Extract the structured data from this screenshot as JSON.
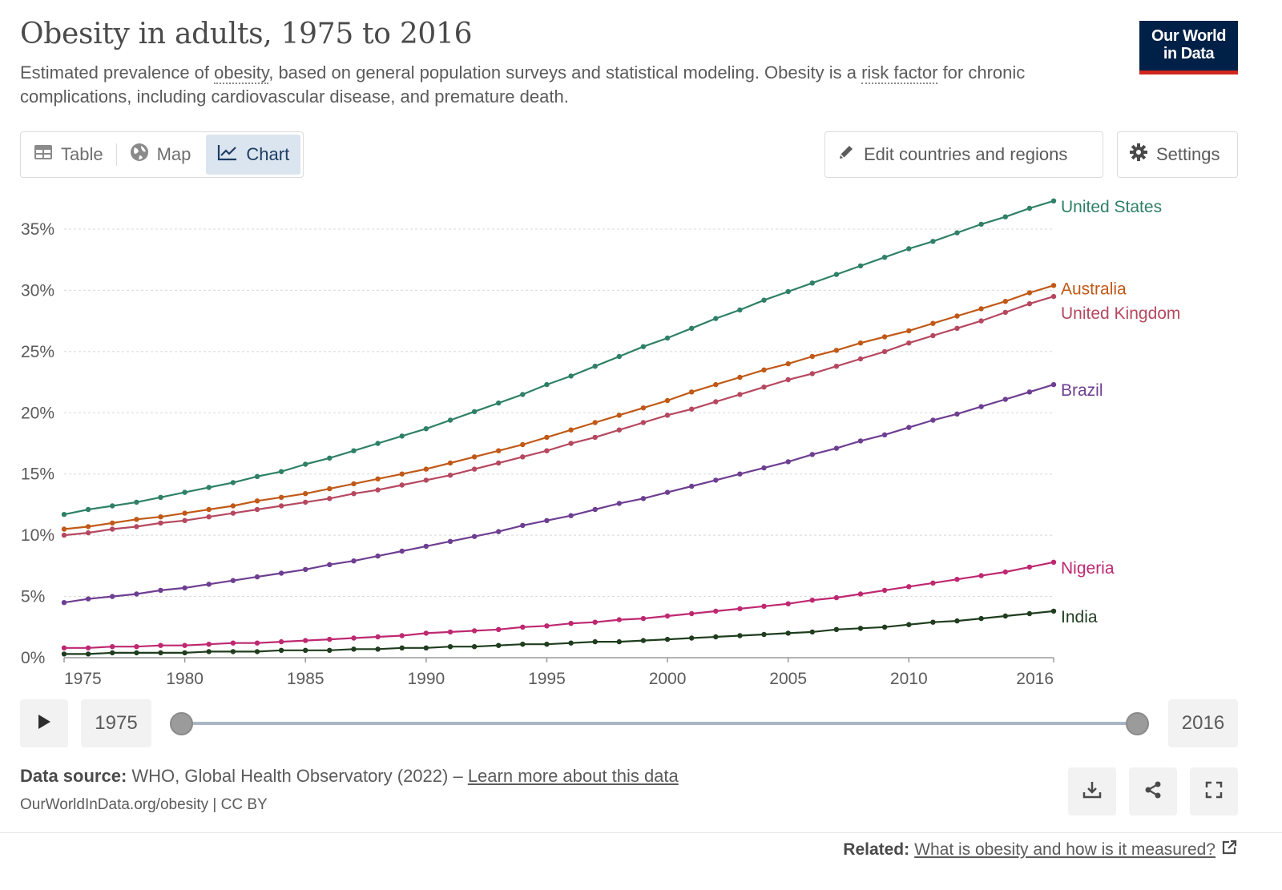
{
  "header": {
    "title": "Obesity in adults, 1975 to 2016",
    "subtitle_pre": "Estimated prevalence of ",
    "subtitle_link1": "obesity",
    "subtitle_mid": ", based on general population surveys and statistical modeling. Obesity is a ",
    "subtitle_link2": "risk factor",
    "subtitle_post": " for chronic complications, including cardiovascular disease, and premature death.",
    "logo_line1": "Our World",
    "logo_line2": "in Data"
  },
  "tabs": [
    {
      "label": "Table",
      "icon": "table-icon"
    },
    {
      "label": "Map",
      "icon": "globe-icon"
    },
    {
      "label": "Chart",
      "icon": "line-chart-icon",
      "active": true
    }
  ],
  "toolbar": {
    "edit_label": "Edit countries and regions",
    "settings_label": "Settings"
  },
  "timeline": {
    "start_year": "1975",
    "end_year": "2016"
  },
  "footer": {
    "source_label": "Data source:",
    "source_text": "WHO, Global Health Observatory (2022) –",
    "source_link": "Learn more about this data",
    "url_text": "OurWorldInData.org/obesity | CC BY",
    "related_label": "Related:",
    "related_link": "What is obesity and how is it measured?"
  },
  "chart_data": {
    "type": "line",
    "x_start": 1975,
    "x_end": 2016,
    "xlim": [
      1975,
      2016
    ],
    "ylim": [
      0,
      35
    ],
    "y_ticks": [
      0,
      5,
      10,
      15,
      20,
      25,
      30,
      35
    ],
    "y_tick_labels": [
      "0%",
      "5%",
      "10%",
      "15%",
      "20%",
      "25%",
      "30%",
      "35%"
    ],
    "x_ticks": [
      1975,
      1980,
      1985,
      1990,
      1995,
      2000,
      2005,
      2010,
      2016
    ],
    "x_tick_labels": [
      "1975",
      "1980",
      "1985",
      "1990",
      "1995",
      "2000",
      "2005",
      "2010",
      "2016"
    ],
    "grid": true,
    "series": [
      {
        "name": "United States",
        "color": "#2e8067",
        "values": [
          11.7,
          12.1,
          12.4,
          12.7,
          13.1,
          13.5,
          13.9,
          14.3,
          14.8,
          15.2,
          15.8,
          16.3,
          16.9,
          17.5,
          18.1,
          18.7,
          19.4,
          20.1,
          20.8,
          21.5,
          22.3,
          23.0,
          23.8,
          24.6,
          25.4,
          26.1,
          26.9,
          27.7,
          28.4,
          29.2,
          29.9,
          30.6,
          31.3,
          32.0,
          32.7,
          33.4,
          34.0,
          34.7,
          35.4,
          36.0,
          36.7,
          37.3
        ]
      },
      {
        "name": "Australia",
        "color": "#c05917",
        "values": [
          10.5,
          10.7,
          11.0,
          11.3,
          11.5,
          11.8,
          12.1,
          12.4,
          12.8,
          13.1,
          13.4,
          13.8,
          14.2,
          14.6,
          15.0,
          15.4,
          15.9,
          16.4,
          16.9,
          17.4,
          18.0,
          18.6,
          19.2,
          19.8,
          20.4,
          21.0,
          21.7,
          22.3,
          22.9,
          23.5,
          24.0,
          24.6,
          25.1,
          25.7,
          26.2,
          26.7,
          27.3,
          27.9,
          28.5,
          29.1,
          29.8,
          30.4
        ]
      },
      {
        "name": "United Kingdom",
        "color": "#b5485f",
        "values": [
          10.0,
          10.2,
          10.5,
          10.7,
          11.0,
          11.2,
          11.5,
          11.8,
          12.1,
          12.4,
          12.7,
          13.0,
          13.4,
          13.7,
          14.1,
          14.5,
          14.9,
          15.4,
          15.9,
          16.4,
          16.9,
          17.5,
          18.0,
          18.6,
          19.2,
          19.8,
          20.3,
          20.9,
          21.5,
          22.1,
          22.7,
          23.2,
          23.8,
          24.4,
          25.0,
          25.7,
          26.3,
          26.9,
          27.5,
          28.2,
          28.9,
          29.5
        ]
      },
      {
        "name": "Brazil",
        "color": "#6d3e91",
        "values": [
          4.5,
          4.8,
          5.0,
          5.2,
          5.5,
          5.7,
          6.0,
          6.3,
          6.6,
          6.9,
          7.2,
          7.6,
          7.9,
          8.3,
          8.7,
          9.1,
          9.5,
          9.9,
          10.3,
          10.8,
          11.2,
          11.6,
          12.1,
          12.6,
          13.0,
          13.5,
          14.0,
          14.5,
          15.0,
          15.5,
          16.0,
          16.6,
          17.1,
          17.7,
          18.2,
          18.8,
          19.4,
          19.9,
          20.5,
          21.1,
          21.7,
          22.3
        ]
      },
      {
        "name": "Nigeria",
        "color": "#be2871",
        "values": [
          0.8,
          0.8,
          0.9,
          0.9,
          1.0,
          1.0,
          1.1,
          1.2,
          1.2,
          1.3,
          1.4,
          1.5,
          1.6,
          1.7,
          1.8,
          2.0,
          2.1,
          2.2,
          2.3,
          2.5,
          2.6,
          2.8,
          2.9,
          3.1,
          3.2,
          3.4,
          3.6,
          3.8,
          4.0,
          4.2,
          4.4,
          4.7,
          4.9,
          5.2,
          5.5,
          5.8,
          6.1,
          6.4,
          6.7,
          7.0,
          7.4,
          7.8
        ]
      },
      {
        "name": "India",
        "color": "#1f3d1e",
        "values": [
          0.3,
          0.3,
          0.4,
          0.4,
          0.4,
          0.4,
          0.5,
          0.5,
          0.5,
          0.6,
          0.6,
          0.6,
          0.7,
          0.7,
          0.8,
          0.8,
          0.9,
          0.9,
          1.0,
          1.1,
          1.1,
          1.2,
          1.3,
          1.3,
          1.4,
          1.5,
          1.6,
          1.7,
          1.8,
          1.9,
          2.0,
          2.1,
          2.3,
          2.4,
          2.5,
          2.7,
          2.9,
          3.0,
          3.2,
          3.4,
          3.6,
          3.8
        ]
      }
    ]
  }
}
